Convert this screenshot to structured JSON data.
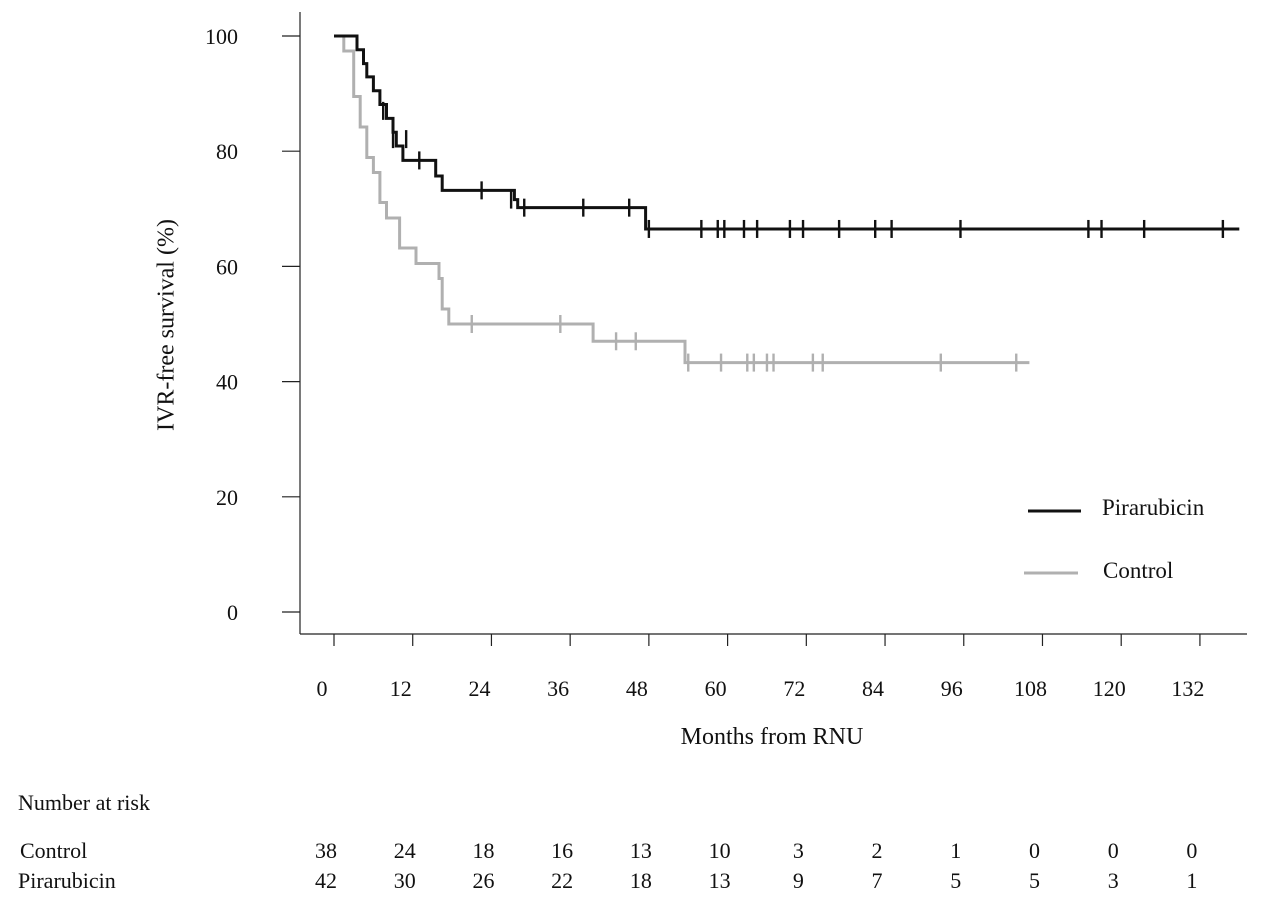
{
  "chart_data": {
    "type": "line",
    "step": true,
    "xlabel": "Months from RNU",
    "ylabel": "IVR-free survival (%)",
    "xlim": [
      0,
      140
    ],
    "ylim": [
      0,
      100
    ],
    "xticks": [
      0,
      12,
      24,
      36,
      48,
      60,
      72,
      84,
      96,
      108,
      120,
      132
    ],
    "yticks": [
      0,
      20,
      40,
      60,
      80,
      100
    ],
    "grid": false,
    "legend_position": "bottom-right",
    "series": [
      {
        "name": "Pirarubicin",
        "color": "#111111",
        "points": [
          [
            0,
            100
          ],
          [
            3.5,
            100
          ],
          [
            3.5,
            97.6
          ],
          [
            4.5,
            97.6
          ],
          [
            4.5,
            95.2
          ],
          [
            5,
            95.2
          ],
          [
            5,
            92.9
          ],
          [
            6,
            92.9
          ],
          [
            6,
            90.5
          ],
          [
            7,
            90.5
          ],
          [
            7,
            88.1
          ],
          [
            8,
            88.1
          ],
          [
            8,
            85.7
          ],
          [
            9,
            85.7
          ],
          [
            9,
            83.3
          ],
          [
            9.5,
            83.3
          ],
          [
            9.5,
            80.9
          ],
          [
            10.5,
            80.9
          ],
          [
            10.5,
            78.4
          ],
          [
            15.5,
            78.4
          ],
          [
            15.5,
            75.7
          ],
          [
            16.5,
            75.7
          ],
          [
            16.5,
            73.2
          ],
          [
            27.5,
            73.2
          ],
          [
            27.5,
            71.6
          ],
          [
            28,
            71.6
          ],
          [
            28,
            70.2
          ],
          [
            47.5,
            70.2
          ],
          [
            47.5,
            66.5
          ],
          [
            138,
            66.5
          ]
        ],
        "censored": [
          [
            7.5,
            87
          ],
          [
            9,
            82.1
          ],
          [
            11,
            82.1
          ],
          [
            13,
            78.4
          ],
          [
            22.5,
            73.2
          ],
          [
            27,
            71.6
          ],
          [
            29,
            70.2
          ],
          [
            38,
            70.2
          ],
          [
            45,
            70.2
          ],
          [
            48,
            66.5
          ],
          [
            56,
            66.5
          ],
          [
            58.5,
            66.5
          ],
          [
            59.5,
            66.5
          ],
          [
            62.5,
            66.5
          ],
          [
            64.5,
            66.5
          ],
          [
            69.5,
            66.5
          ],
          [
            71.5,
            66.5
          ],
          [
            77,
            66.5
          ],
          [
            82.5,
            66.5
          ],
          [
            85,
            66.5
          ],
          [
            95.5,
            66.5
          ],
          [
            115,
            66.5
          ],
          [
            117,
            66.5
          ],
          [
            123.5,
            66.5
          ],
          [
            135.5,
            66.5
          ]
        ]
      },
      {
        "name": "Control",
        "color": "#b0b0b0",
        "points": [
          [
            0,
            100
          ],
          [
            1.5,
            100
          ],
          [
            1.5,
            97.4
          ],
          [
            3,
            97.4
          ],
          [
            3,
            89.5
          ],
          [
            4,
            89.5
          ],
          [
            4,
            84.2
          ],
          [
            5,
            84.2
          ],
          [
            5,
            78.9
          ],
          [
            6,
            78.9
          ],
          [
            6,
            76.3
          ],
          [
            7,
            76.3
          ],
          [
            7,
            71.1
          ],
          [
            8,
            71.1
          ],
          [
            8,
            68.4
          ],
          [
            10,
            68.4
          ],
          [
            10,
            63.2
          ],
          [
            12.5,
            63.2
          ],
          [
            12.5,
            60.5
          ],
          [
            16,
            60.5
          ],
          [
            16,
            57.9
          ],
          [
            16.5,
            57.9
          ],
          [
            16.5,
            52.6
          ],
          [
            17.5,
            52.6
          ],
          [
            17.5,
            50
          ],
          [
            39.5,
            50
          ],
          [
            39.5,
            47
          ],
          [
            53.5,
            47
          ],
          [
            53.5,
            43.3
          ],
          [
            106,
            43.3
          ]
        ],
        "censored": [
          [
            21,
            50
          ],
          [
            34.5,
            50
          ],
          [
            43,
            47
          ],
          [
            46,
            47
          ],
          [
            54,
            43.3
          ],
          [
            59,
            43.3
          ],
          [
            63,
            43.3
          ],
          [
            64,
            43.3
          ],
          [
            66,
            43.3
          ],
          [
            67,
            43.3
          ],
          [
            73,
            43.3
          ],
          [
            74.5,
            43.3
          ],
          [
            92.5,
            43.3
          ],
          [
            104,
            43.3
          ]
        ]
      }
    ]
  },
  "risk_table": {
    "title": "Number at risk",
    "rows": [
      {
        "label": "Control",
        "values": [
          "38",
          "24",
          "18",
          "16",
          "13",
          "10",
          "3",
          "2",
          "1",
          "0",
          "0",
          "0"
        ]
      },
      {
        "label": "Pirarubicin",
        "values": [
          "42",
          "30",
          "26",
          "22",
          "18",
          "13",
          "9",
          "7",
          "5",
          "5",
          "3",
          "1"
        ]
      }
    ]
  }
}
